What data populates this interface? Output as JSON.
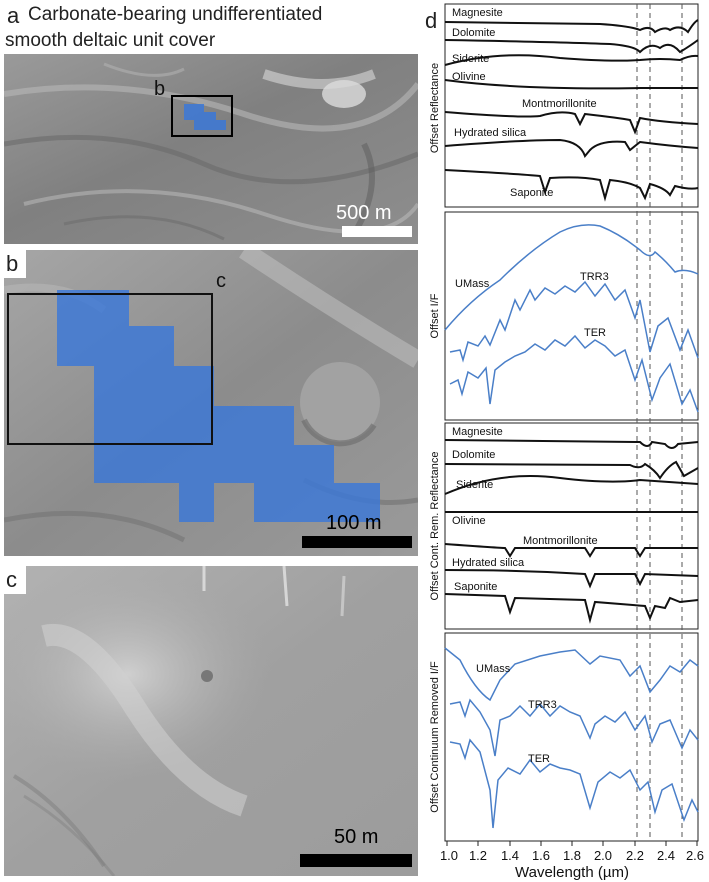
{
  "panel_a": {
    "letter": "a",
    "title_line1": "Carbonate-bearing undifferentiated",
    "title_line2": "smooth deltaic unit cover",
    "inset_letter": "b",
    "scale_label": "500 m"
  },
  "panel_b": {
    "letter": "b",
    "inset_letter": "c",
    "scale_label": "100 m"
  },
  "panel_c": {
    "letter": "c",
    "scale_label": "50 m"
  },
  "panel_d": {
    "letter": "d",
    "colors": {
      "lab": "#111111",
      "crism": "#4a7fc8",
      "highlight": "#3b78d8"
    },
    "plot1": {
      "ylabel": "Offset Reflectance",
      "labels": [
        "Magnesite",
        "Dolomite",
        "Siderite",
        "Olivine",
        "Montmorillonite",
        "Hydrated silica",
        "Saponite"
      ]
    },
    "plot2": {
      "ylabel": "Offset I/F",
      "labels": [
        "UMass",
        "TRR3",
        "TER"
      ]
    },
    "plot3": {
      "ylabel": "Offset Cont. Rem. Reflectance",
      "labels": [
        "Magnesite",
        "Dolomite",
        "Siderite",
        "Olivine",
        "Montmorillonite",
        "Hydrated silica",
        "Saponite"
      ]
    },
    "plot4": {
      "ylabel": "Offset Continuum Removed I/F",
      "labels": [
        "UMass",
        "TRR3",
        "TER"
      ]
    },
    "xaxis": {
      "ticks": [
        "1.0",
        "1.2",
        "1.4",
        "1.6",
        "1.8",
        "2.0",
        "2.2",
        "2.4",
        "2.6"
      ],
      "label": "Wavelength (µm)"
    }
  },
  "chart_data": {
    "type": "line",
    "x_range": [
      1.0,
      2.6
    ],
    "xlabel": "Wavelength (µm)",
    "reference_lines": [
      2.22,
      2.3,
      2.5
    ],
    "lab_spectra": [
      "Magnesite",
      "Dolomite",
      "Siderite",
      "Olivine",
      "Montmorillonite",
      "Hydrated silica",
      "Saponite"
    ],
    "observed_spectra": [
      "UMass",
      "TRR3",
      "TER"
    ]
  }
}
